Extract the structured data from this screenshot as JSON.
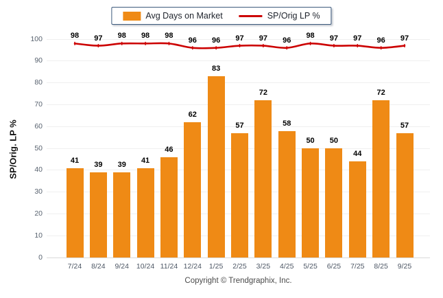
{
  "legend": {
    "bar_label": "Avg Days on Market",
    "line_label": "SP/Orig LP %"
  },
  "footer": {
    "copyright": "Copyright © Trendgraphix, Inc."
  },
  "colors": {
    "bar": "#EF8A15",
    "line": "#CC0000",
    "legend_border": "#3D5A7C"
  },
  "chart_data": {
    "type": "bar",
    "categories": [
      "7/24",
      "8/24",
      "9/24",
      "10/24",
      "11/24",
      "12/24",
      "1/25",
      "2/25",
      "3/25",
      "4/25",
      "5/25",
      "6/25",
      "7/25",
      "8/25",
      "9/25"
    ],
    "series": [
      {
        "name": "Avg Days on Market",
        "type": "bar",
        "color": "#EF8A15",
        "values": [
          41,
          39,
          39,
          41,
          46,
          62,
          83,
          57,
          72,
          58,
          50,
          50,
          44,
          72,
          57
        ]
      },
      {
        "name": "SP/Orig LP %",
        "type": "line",
        "color": "#CC0000",
        "values": [
          98,
          97,
          98,
          98,
          98,
          96,
          96,
          97,
          97,
          96,
          98,
          97,
          97,
          96,
          97
        ]
      }
    ],
    "title": "",
    "xlabel": "",
    "ylabel": "SP/Orig. LP %",
    "ylim": [
      0,
      100
    ],
    "ytick_step": 10,
    "grid": true,
    "legend_position": "top-center"
  }
}
